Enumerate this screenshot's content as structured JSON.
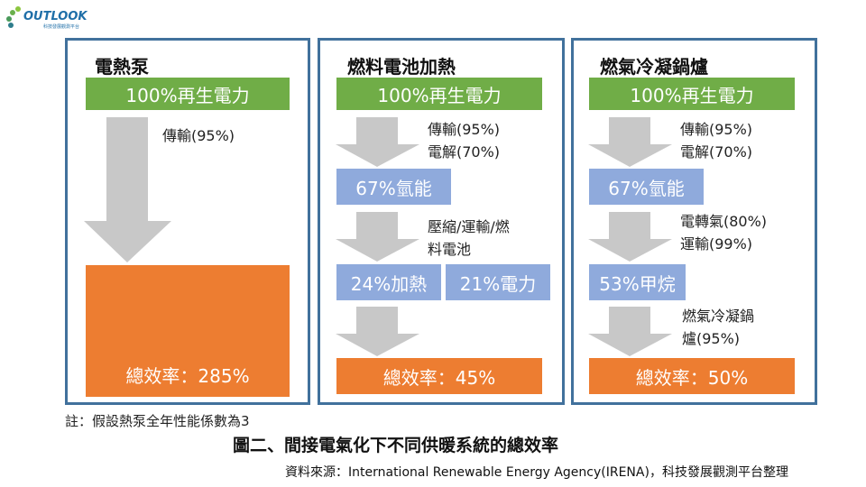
{
  "logo": {
    "text": "OUTLOOK",
    "subtitle": "科技發展觀測平台"
  },
  "colors": {
    "border": "#41719C",
    "renewable": "#70AD47",
    "intermediate": "#8FAADC",
    "total": "#ED7D31",
    "arrow": "#C8C8C8"
  },
  "panels": [
    {
      "title": "電熱泵",
      "source": "100%再生電力",
      "step1": "傳輸(95%)",
      "total": "總效率：285%"
    },
    {
      "title": "燃料電池加熱",
      "source": "100%再生電力",
      "step1a": "傳輸(95%)",
      "step1b": "電解(70%)",
      "mid": "67%氫能",
      "step2a": "壓縮/運輸/燃",
      "step2b": "料電池",
      "out1": "24%加熱",
      "out2": "21%電力",
      "total": "總效率：45%"
    },
    {
      "title": "燃氣冷凝鍋爐",
      "source": "100%再生電力",
      "step1a": "傳輸(95%)",
      "step1b": "電解(70%)",
      "mid": "67%氫能",
      "step2a": "電轉氣(80%)",
      "step2b": "運輸(99%)",
      "mid2": "53%甲烷",
      "step3a": "燃氣冷凝鍋",
      "step3b": "爐(95%)",
      "total": "總效率：50%"
    }
  ],
  "footnote": "註：假設熱泵全年性能係數為3",
  "caption": "圖二、間接電氣化下不同供暖系統的總效率",
  "source": "資料來源：International Renewable Energy Agency(IRENA)，科技發展觀測平台整理"
}
